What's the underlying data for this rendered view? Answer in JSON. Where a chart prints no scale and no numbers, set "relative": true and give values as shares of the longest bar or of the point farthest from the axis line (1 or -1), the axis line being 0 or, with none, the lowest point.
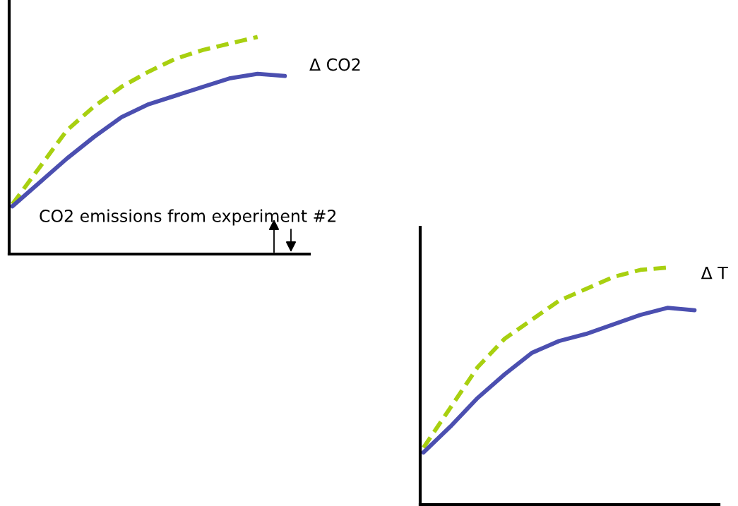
{
  "chart_data": [
    {
      "type": "line",
      "title": "Δ CO2",
      "relative": true,
      "categories": [
        null,
        null,
        null,
        null,
        null,
        null,
        null,
        null,
        null,
        null,
        null
      ],
      "series": [
        {
          "color": "#a8d010",
          "line_style": "dashed",
          "values": [
            0.23,
            0.4,
            0.57,
            0.68,
            0.77,
            0.84,
            0.9,
            0.94,
            0.97,
            1.0,
            null
          ]
        },
        {
          "color": "#4b4fb0",
          "line_style": "solid",
          "values": [
            0.22,
            0.33,
            0.44,
            0.54,
            0.63,
            0.69,
            0.73,
            0.77,
            0.81,
            0.83,
            0.82
          ]
        }
      ],
      "annotations": [
        "CO2 emissions from experiment #2"
      ],
      "grid": false,
      "legend": false
    },
    {
      "type": "line",
      "title": "Δ T",
      "relative": true,
      "categories": [
        null,
        null,
        null,
        null,
        null,
        null,
        null,
        null,
        null,
        null,
        null
      ],
      "series": [
        {
          "color": "#a8d010",
          "line_style": "dashed",
          "values": [
            0.24,
            0.41,
            0.58,
            0.7,
            0.78,
            0.86,
            0.91,
            0.96,
            0.99,
            1.0,
            null
          ]
        },
        {
          "color": "#4b4fb0",
          "line_style": "solid",
          "values": [
            0.22,
            0.33,
            0.45,
            0.55,
            0.64,
            0.69,
            0.72,
            0.76,
            0.8,
            0.83,
            0.82
          ]
        }
      ],
      "grid": false,
      "legend": false
    }
  ]
}
